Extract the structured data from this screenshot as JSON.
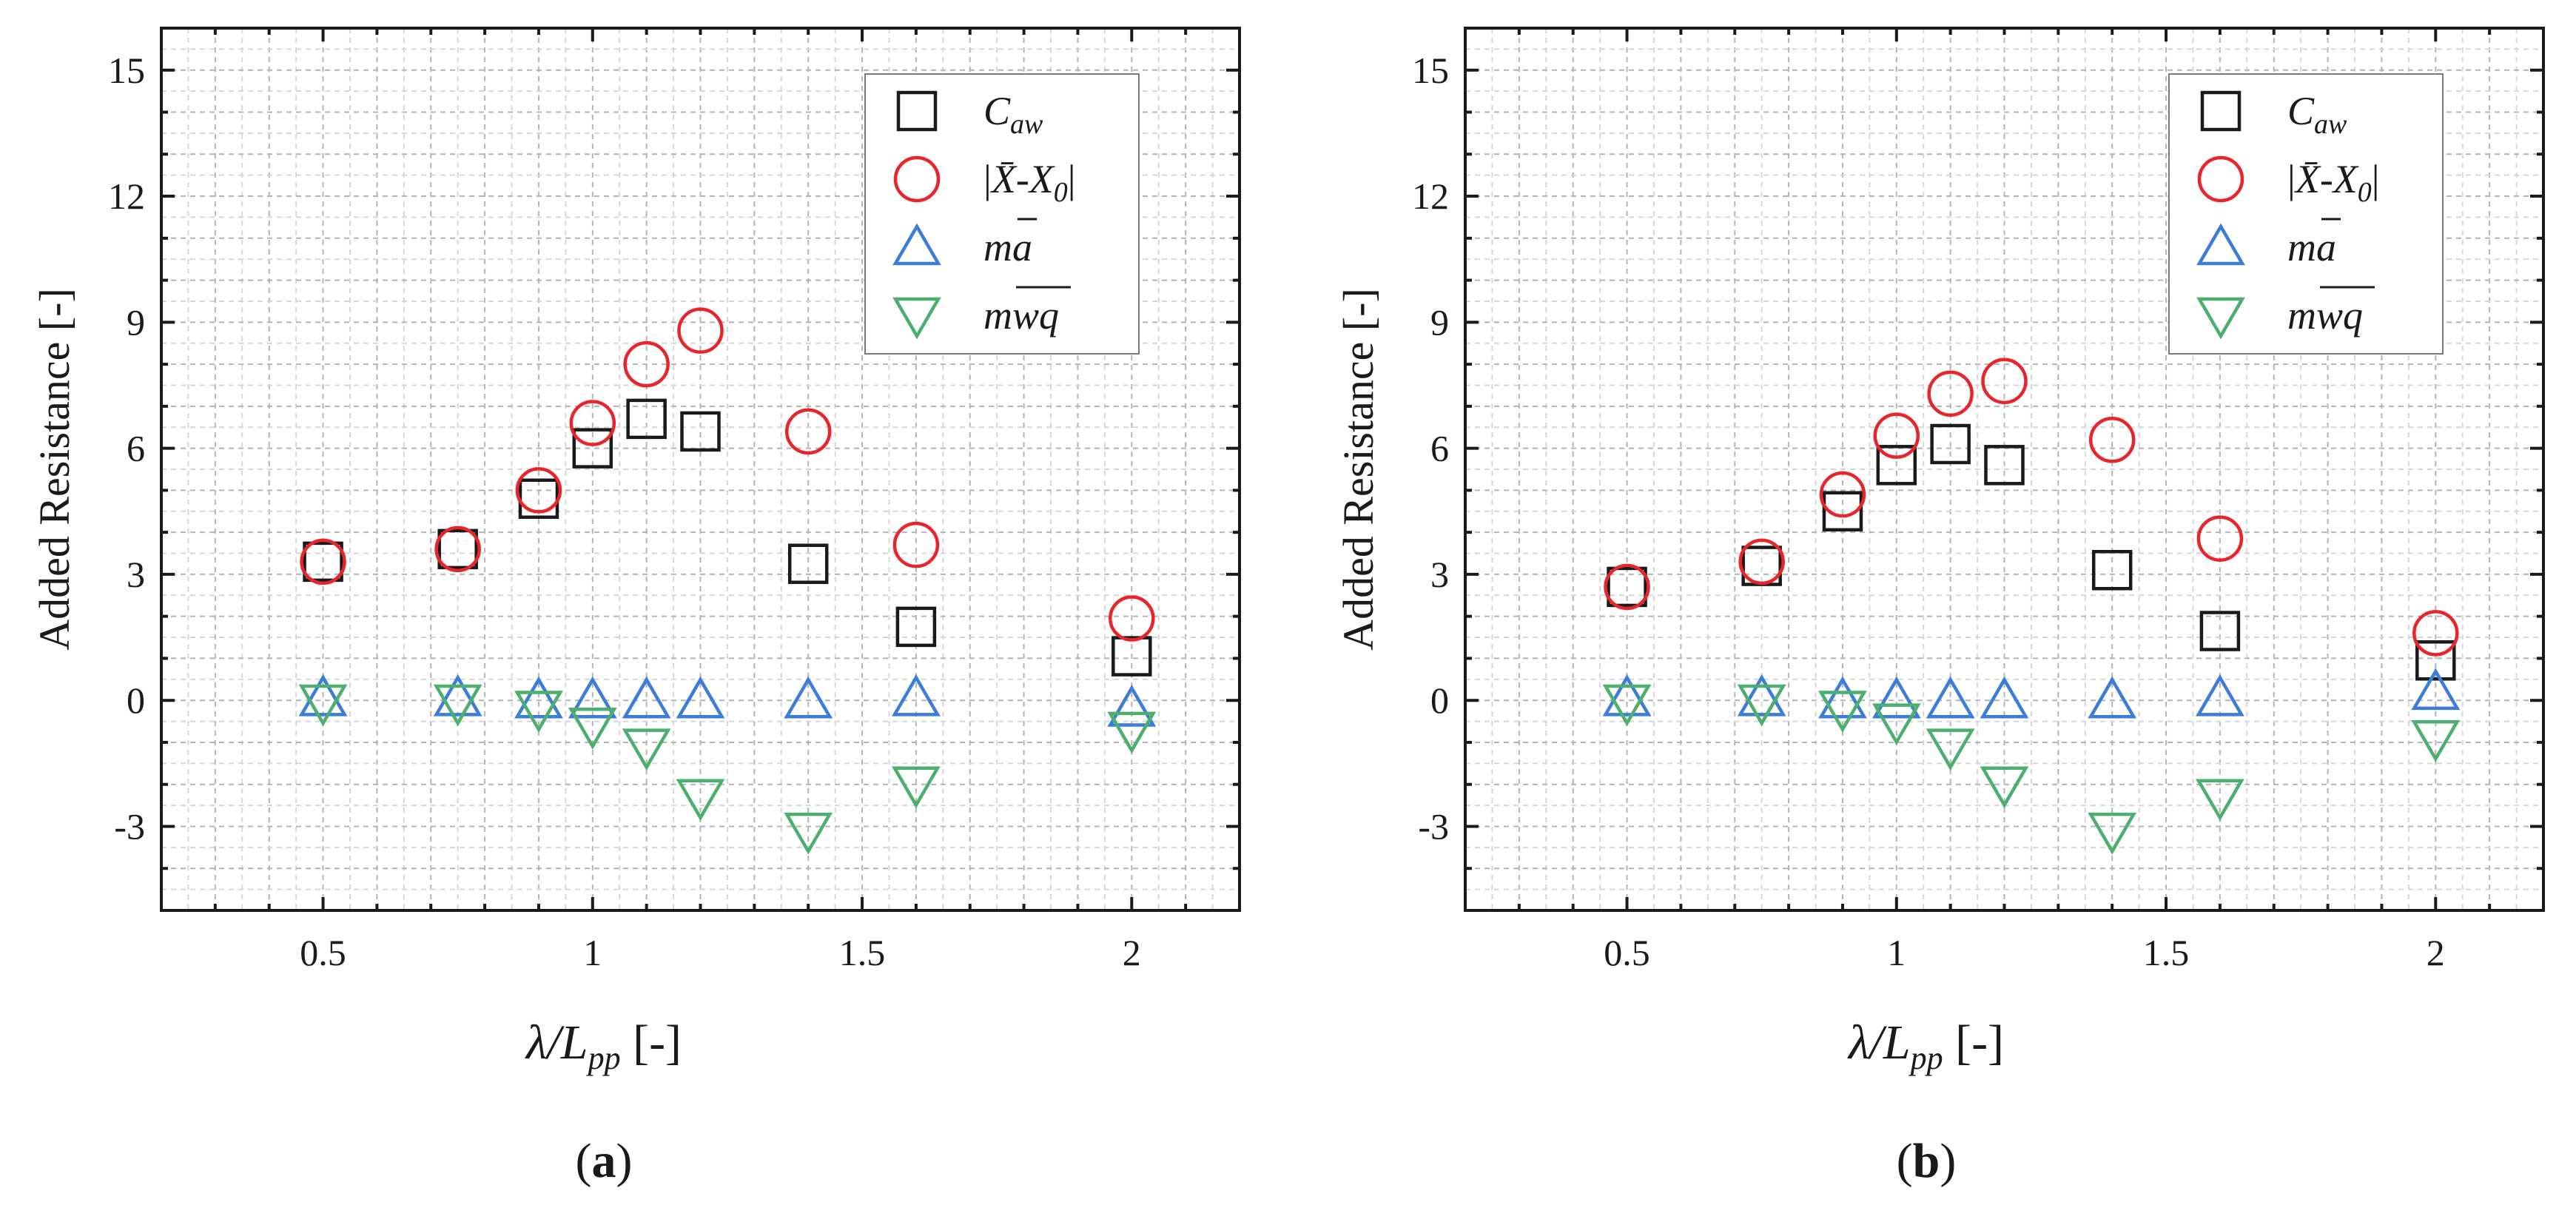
{
  "chart_data": [
    {
      "type": "scatter",
      "panel_label": "a",
      "xlabel": "λ/L",
      "xlabel_sub": "pp",
      "xlabel_unit": " [-]",
      "ylabel": "Added Resistance [-]",
      "xlim": [
        0.2,
        2.2
      ],
      "ylim": [
        -5,
        16
      ],
      "xticks": [
        0.5,
        1,
        1.5,
        2
      ],
      "xtick_labels": [
        "0.5",
        "1",
        "1.5",
        "2"
      ],
      "yticks": [
        -3,
        0,
        3,
        6,
        9,
        12,
        15
      ],
      "ytick_labels": [
        "-3",
        "0",
        "3",
        "6",
        "9",
        "12",
        "15"
      ],
      "grid": true,
      "legend_position": "top-right",
      "series": [
        {
          "name": "Caw",
          "label_main": "C",
          "label_sub": "aw",
          "marker": "square",
          "color": "#1a1a1a",
          "x": [
            0.5,
            0.75,
            0.9,
            1.0,
            1.1,
            1.2,
            1.4,
            1.6,
            2.0
          ],
          "y": [
            3.3,
            3.6,
            4.8,
            6.0,
            6.7,
            6.4,
            3.25,
            1.75,
            1.05
          ]
        },
        {
          "name": "|X̄-X0|",
          "label_pre": "|",
          "label_main": "X̄",
          "label_mid": "-X",
          "label_sub": "0",
          "label_post": "|",
          "marker": "circle",
          "color": "#e8252b",
          "x": [
            0.5,
            0.75,
            0.9,
            1.0,
            1.1,
            1.2,
            1.4,
            1.6,
            2.0
          ],
          "y": [
            3.3,
            3.6,
            5.0,
            6.6,
            8.0,
            8.8,
            6.4,
            3.7,
            1.95
          ]
        },
        {
          "name": "m a-bar",
          "label_main": "ma",
          "marker": "triangle-up",
          "color": "#3b7dd8",
          "x": [
            0.5,
            0.75,
            0.9,
            1.0,
            1.1,
            1.2,
            1.4,
            1.6,
            2.0
          ],
          "y": [
            0.05,
            0.05,
            0.0,
            0.0,
            0.0,
            0.0,
            0.0,
            0.05,
            -0.2
          ]
        },
        {
          "name": "m wq-bar",
          "label_main": "mwq",
          "marker": "triangle-down",
          "color": "#4caf6e",
          "x": [
            0.5,
            0.75,
            0.9,
            1.0,
            1.1,
            1.2,
            1.4,
            1.6,
            2.0
          ],
          "y": [
            -0.05,
            -0.05,
            -0.2,
            -0.6,
            -1.1,
            -2.3,
            -3.1,
            -2.0,
            -0.7
          ]
        }
      ]
    },
    {
      "type": "scatter",
      "panel_label": "b",
      "xlabel": "λ/L",
      "xlabel_sub": "pp",
      "xlabel_unit": " [-]",
      "ylabel": "Added Resistance [-]",
      "xlim": [
        0.2,
        2.2
      ],
      "ylim": [
        -5,
        16
      ],
      "xticks": [
        0.5,
        1,
        1.5,
        2
      ],
      "xtick_labels": [
        "0.5",
        "1",
        "1.5",
        "2"
      ],
      "yticks": [
        -3,
        0,
        3,
        6,
        9,
        12,
        15
      ],
      "ytick_labels": [
        "-3",
        "0",
        "3",
        "6",
        "9",
        "12",
        "15"
      ],
      "grid": true,
      "legend_position": "top-right",
      "series": [
        {
          "name": "Caw",
          "label_main": "C",
          "label_sub": "aw",
          "marker": "square",
          "color": "#1a1a1a",
          "x": [
            0.5,
            0.75,
            0.9,
            1.0,
            1.1,
            1.2,
            1.4,
            1.6,
            2.0
          ],
          "y": [
            2.7,
            3.2,
            4.5,
            5.6,
            6.1,
            5.6,
            3.1,
            1.65,
            0.95
          ]
        },
        {
          "name": "|X̄-X0|",
          "label_pre": "|",
          "label_main": "X̄",
          "label_mid": "-X",
          "label_sub": "0",
          "label_post": "|",
          "marker": "circle",
          "color": "#e8252b",
          "x": [
            0.5,
            0.75,
            0.9,
            1.0,
            1.1,
            1.2,
            1.4,
            1.6,
            2.0
          ],
          "y": [
            2.7,
            3.3,
            4.9,
            6.3,
            7.3,
            7.6,
            6.2,
            3.85,
            1.6
          ]
        },
        {
          "name": "m a-bar",
          "label_main": "ma",
          "marker": "triangle-up",
          "color": "#3b7dd8",
          "x": [
            0.5,
            0.75,
            0.9,
            1.0,
            1.1,
            1.2,
            1.4,
            1.6,
            2.0
          ],
          "y": [
            0.05,
            0.05,
            0.0,
            0.0,
            0.0,
            0.0,
            0.0,
            0.05,
            0.2
          ]
        },
        {
          "name": "m wq-bar",
          "label_main": "mwq",
          "marker": "triangle-down",
          "color": "#4caf6e",
          "x": [
            0.5,
            0.75,
            0.9,
            1.0,
            1.1,
            1.2,
            1.4,
            1.6,
            2.0
          ],
          "y": [
            -0.05,
            -0.05,
            -0.2,
            -0.5,
            -1.1,
            -2.0,
            -3.1,
            -2.3,
            -0.9
          ]
        }
      ]
    }
  ]
}
